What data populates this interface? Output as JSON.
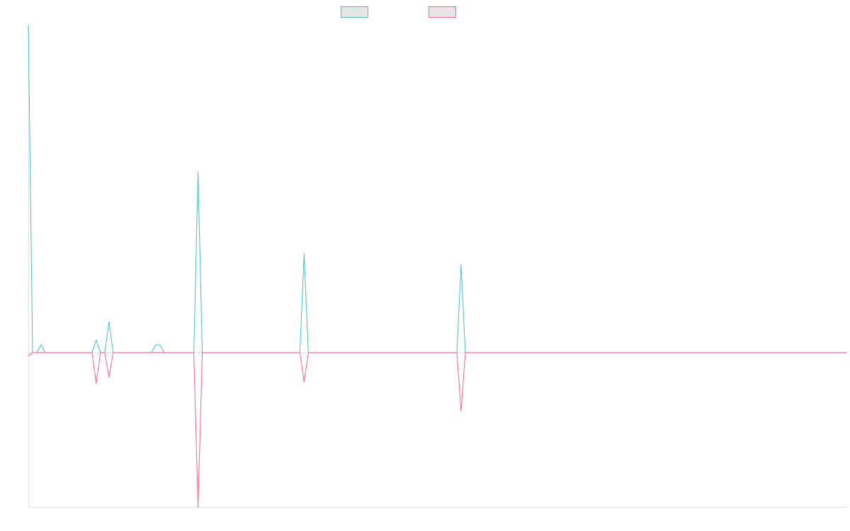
{
  "chart_data": {
    "type": "line",
    "title": "",
    "xlabel": "",
    "ylabel": "",
    "legend_position": "top-center",
    "grid": false,
    "x": [
      0,
      1,
      2,
      3,
      4,
      5,
      6,
      7,
      8,
      9,
      10,
      11,
      12,
      13,
      14,
      15,
      16,
      17,
      18,
      19,
      20,
      21,
      22,
      23,
      24,
      25,
      26,
      27,
      28,
      29,
      30,
      31,
      32,
      33,
      34,
      35,
      36,
      37,
      38,
      39,
      40,
      41,
      42,
      43,
      44,
      45,
      46,
      47,
      48,
      49,
      50,
      51,
      52,
      53,
      54,
      55,
      56,
      57,
      58,
      59,
      60,
      61,
      62,
      63,
      64,
      65,
      66,
      67,
      68,
      69,
      70,
      71,
      72,
      73,
      74,
      75,
      76,
      77,
      78,
      79,
      80,
      81,
      82,
      83,
      84,
      85,
      86,
      87,
      88,
      89,
      90,
      91,
      92,
      93,
      94,
      95,
      96,
      97,
      98,
      99,
      100,
      101,
      102,
      103,
      104,
      105,
      106,
      107,
      108,
      109,
      110,
      111,
      112,
      113,
      114,
      115,
      116,
      117,
      118,
      119,
      120,
      121,
      122,
      123,
      124,
      125,
      126,
      127,
      128,
      129,
      130,
      131,
      132,
      133,
      134,
      135,
      136,
      137,
      138,
      139,
      140,
      141,
      142,
      143,
      144,
      145,
      146,
      147,
      148,
      149,
      150,
      151,
      152,
      153,
      154,
      155,
      156,
      157,
      158,
      159,
      160,
      161,
      162,
      163,
      164,
      165,
      166,
      167,
      168,
      169,
      170,
      171,
      172,
      173,
      174,
      175,
      176,
      177,
      178,
      179,
      180,
      181,
      182,
      183,
      184,
      185,
      186,
      187,
      188,
      189,
      190,
      191,
      192,
      193
    ],
    "ylim": [
      -100,
      212
    ],
    "series": [
      {
        "color": "#4bc0c0",
        "points": [
          [
            0,
            212
          ],
          [
            3,
            5
          ],
          [
            16,
            8
          ],
          [
            19,
            20
          ],
          [
            30,
            5
          ],
          [
            31,
            5
          ],
          [
            40,
            117
          ],
          [
            65,
            64
          ],
          [
            102,
            57
          ]
        ]
      },
      {
        "color": "#ff6384",
        "points": [
          [
            0,
            -2
          ],
          [
            16,
            -20
          ],
          [
            19,
            -16
          ],
          [
            40,
            -100
          ],
          [
            65,
            -19
          ],
          [
            102,
            -38
          ]
        ]
      }
    ]
  }
}
